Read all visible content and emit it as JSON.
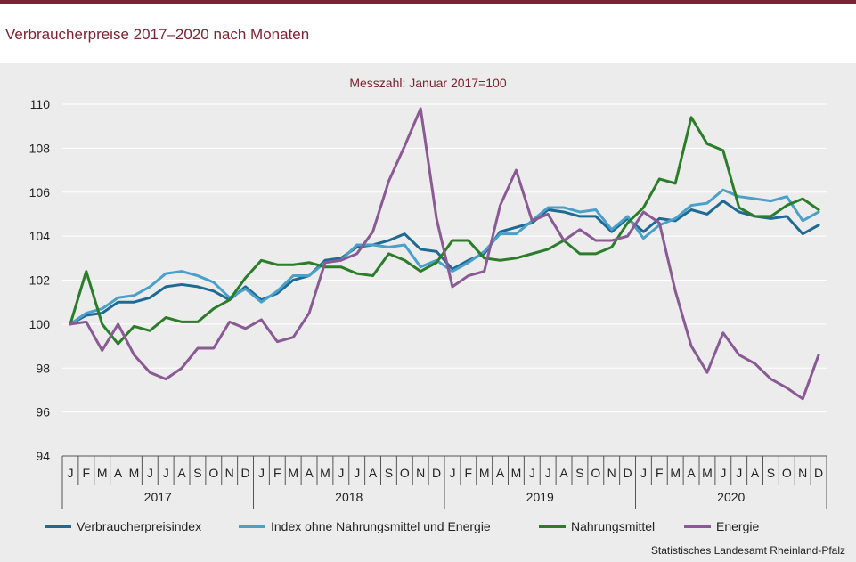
{
  "header": {
    "title": "Verbraucherpreise 2017–2020 nach Monaten",
    "subtitle": "Messzahl:  Januar  2017=100"
  },
  "footer": {
    "source": "Statistisches Landesamt  Rheinland-Pfalz"
  },
  "colors": {
    "accent": "#7b2331",
    "Verbraucherpreisindex": "#1f6a95",
    "Index ohne Nahrungsmittel und Energie": "#4aa0c9",
    "Nahrungsmittel": "#2c7d2a",
    "Energie": "#8a5a94"
  },
  "chart_data": {
    "type": "line",
    "title": "Verbraucherpreise 2017–2020 nach Monaten",
    "subtitle": "Messzahl:  Januar  2017=100",
    "xlabel": "",
    "ylabel": "",
    "ylim": [
      94,
      110
    ],
    "yticks": [
      94,
      96,
      98,
      100,
      102,
      104,
      106,
      108,
      110
    ],
    "grid": "horizontal",
    "legend_position": "bottom",
    "months": [
      "J",
      "F",
      "M",
      "A",
      "M",
      "J",
      "J",
      "A",
      "S",
      "O",
      "N",
      "D"
    ],
    "years": [
      "2017",
      "2018",
      "2019",
      "2020"
    ],
    "series": [
      {
        "name": "Verbraucherpreisindex",
        "values": [
          100.0,
          100.4,
          100.5,
          101.0,
          101.0,
          101.2,
          101.7,
          101.8,
          101.7,
          101.5,
          101.1,
          101.7,
          101.1,
          101.4,
          102.0,
          102.2,
          102.9,
          103.0,
          103.5,
          103.6,
          103.8,
          104.1,
          103.4,
          103.3,
          102.5,
          102.9,
          103.2,
          104.2,
          104.4,
          104.6,
          105.2,
          105.1,
          104.9,
          104.9,
          104.2,
          104.8,
          104.2,
          104.8,
          104.7,
          105.2,
          105.0,
          105.6,
          105.1,
          104.9,
          104.8,
          104.9,
          104.1,
          104.5
        ]
      },
      {
        "name": "Index ohne Nahrungsmittel und Energie",
        "values": [
          100.0,
          100.5,
          100.7,
          101.2,
          101.3,
          101.7,
          102.3,
          102.4,
          102.2,
          101.9,
          101.2,
          101.6,
          101.0,
          101.5,
          102.2,
          102.2,
          102.8,
          102.9,
          103.6,
          103.6,
          103.5,
          103.6,
          102.6,
          102.9,
          102.4,
          102.8,
          103.3,
          104.1,
          104.1,
          104.7,
          105.3,
          105.3,
          105.1,
          105.2,
          104.3,
          104.9,
          103.9,
          104.5,
          104.8,
          105.4,
          105.5,
          106.1,
          105.8,
          105.7,
          105.6,
          105.8,
          104.7,
          105.1
        ]
      },
      {
        "name": "Nahrungsmittel",
        "values": [
          100.0,
          102.4,
          100.0,
          99.1,
          99.9,
          99.7,
          100.3,
          100.1,
          100.1,
          100.7,
          101.1,
          102.1,
          102.9,
          102.7,
          102.7,
          102.8,
          102.6,
          102.6,
          102.3,
          102.2,
          103.2,
          102.9,
          102.4,
          102.8,
          103.8,
          103.8,
          103.0,
          102.9,
          103.0,
          103.2,
          103.4,
          103.8,
          103.2,
          103.2,
          103.5,
          104.6,
          105.3,
          106.6,
          106.4,
          109.4,
          108.2,
          107.9,
          105.3,
          104.9,
          104.9,
          105.4,
          105.7,
          105.2
        ]
      },
      {
        "name": "Energie",
        "values": [
          100.0,
          100.1,
          98.8,
          100.0,
          98.6,
          97.8,
          97.5,
          98.0,
          98.9,
          98.9,
          100.1,
          99.8,
          100.2,
          99.2,
          99.4,
          100.5,
          102.8,
          102.9,
          103.2,
          104.2,
          106.5,
          108.1,
          109.8,
          104.8,
          101.7,
          102.2,
          102.4,
          105.4,
          107.0,
          104.7,
          105.0,
          103.8,
          104.3,
          103.8,
          103.8,
          104.0,
          105.1,
          104.6,
          101.5,
          99.0,
          97.8,
          99.6,
          98.6,
          98.2,
          97.5,
          97.1,
          96.6,
          98.6
        ]
      }
    ]
  }
}
